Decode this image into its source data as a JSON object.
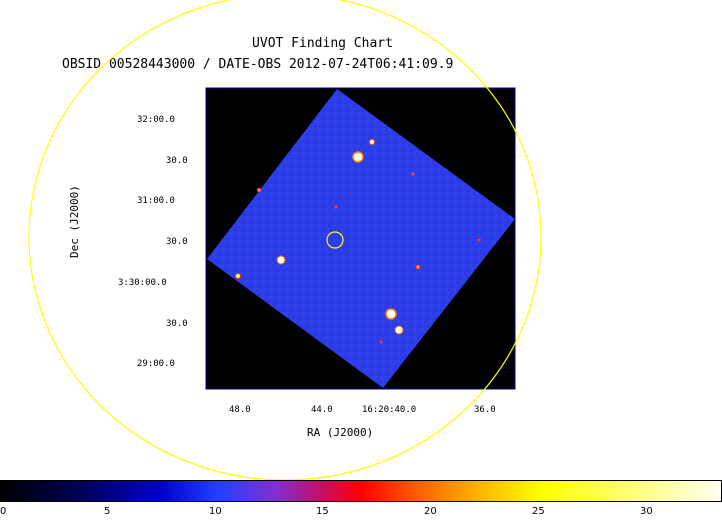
{
  "chart": {
    "title": "UVOT Finding Chart",
    "subtitle": "OBSID 00528443000 / DATE-OBS 2012-07-24T06:41:09.9",
    "xlabel": "RA (J2000)",
    "ylabel": "Dec (J2000)",
    "dec_ticks": [
      "32:00.0",
      "30.0",
      "31:00.0",
      "30.0",
      "3:30:00.0",
      "30.0",
      "29:00.0"
    ],
    "ra_ticks": [
      "48.0",
      "44.0",
      "16:20:40.0",
      "36.0"
    ],
    "colorbar_ticks": [
      "0",
      "5",
      "10",
      "15",
      "20",
      "25",
      "30"
    ],
    "colors": {
      "ellipse": "#ffff00",
      "frame_border": "#00008b",
      "field": "#2d3de8",
      "background": "#000000"
    }
  }
}
